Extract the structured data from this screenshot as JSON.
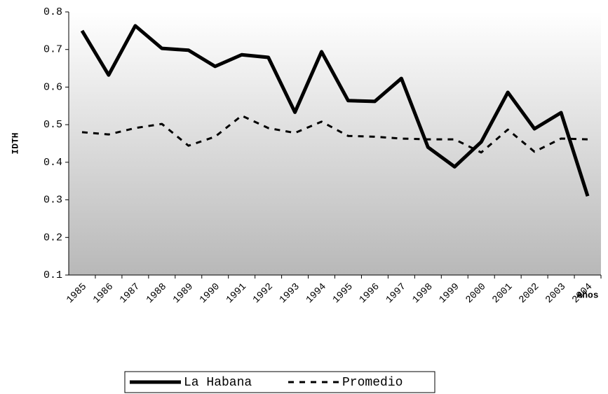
{
  "chart_data": {
    "type": "line",
    "y_label": "IDTH",
    "x_label": "Años",
    "categories": [
      "1985",
      "1986",
      "1987",
      "1988",
      "1989",
      "1990",
      "1991",
      "1992",
      "1993",
      "1994",
      "1995",
      "1996",
      "1997",
      "1998",
      "1999",
      "2000",
      "2001",
      "2002",
      "2003",
      "2004"
    ],
    "series": [
      {
        "name": "La Habana",
        "color": "#000000",
        "line_style": "solid",
        "values": [
          0.75,
          0.632,
          0.763,
          0.703,
          0.698,
          0.655,
          0.686,
          0.679,
          0.533,
          0.694,
          0.564,
          0.562,
          0.623,
          0.44,
          0.388,
          0.454,
          0.586,
          0.489,
          0.532,
          0.31
        ]
      },
      {
        "name": "Promedio",
        "color": "#000000",
        "line_style": "dashed",
        "values": [
          0.48,
          0.474,
          0.491,
          0.502,
          0.444,
          0.468,
          0.524,
          0.491,
          0.478,
          0.508,
          0.47,
          0.468,
          0.463,
          0.461,
          0.461,
          0.426,
          0.487,
          0.428,
          0.463,
          0.461
        ]
      }
    ],
    "ylim": [
      0.1,
      0.8
    ],
    "yticks": [
      0.1,
      0.2,
      0.3,
      0.4,
      0.5,
      0.6,
      0.7,
      0.8
    ],
    "grid": false,
    "legend": "bottom"
  }
}
